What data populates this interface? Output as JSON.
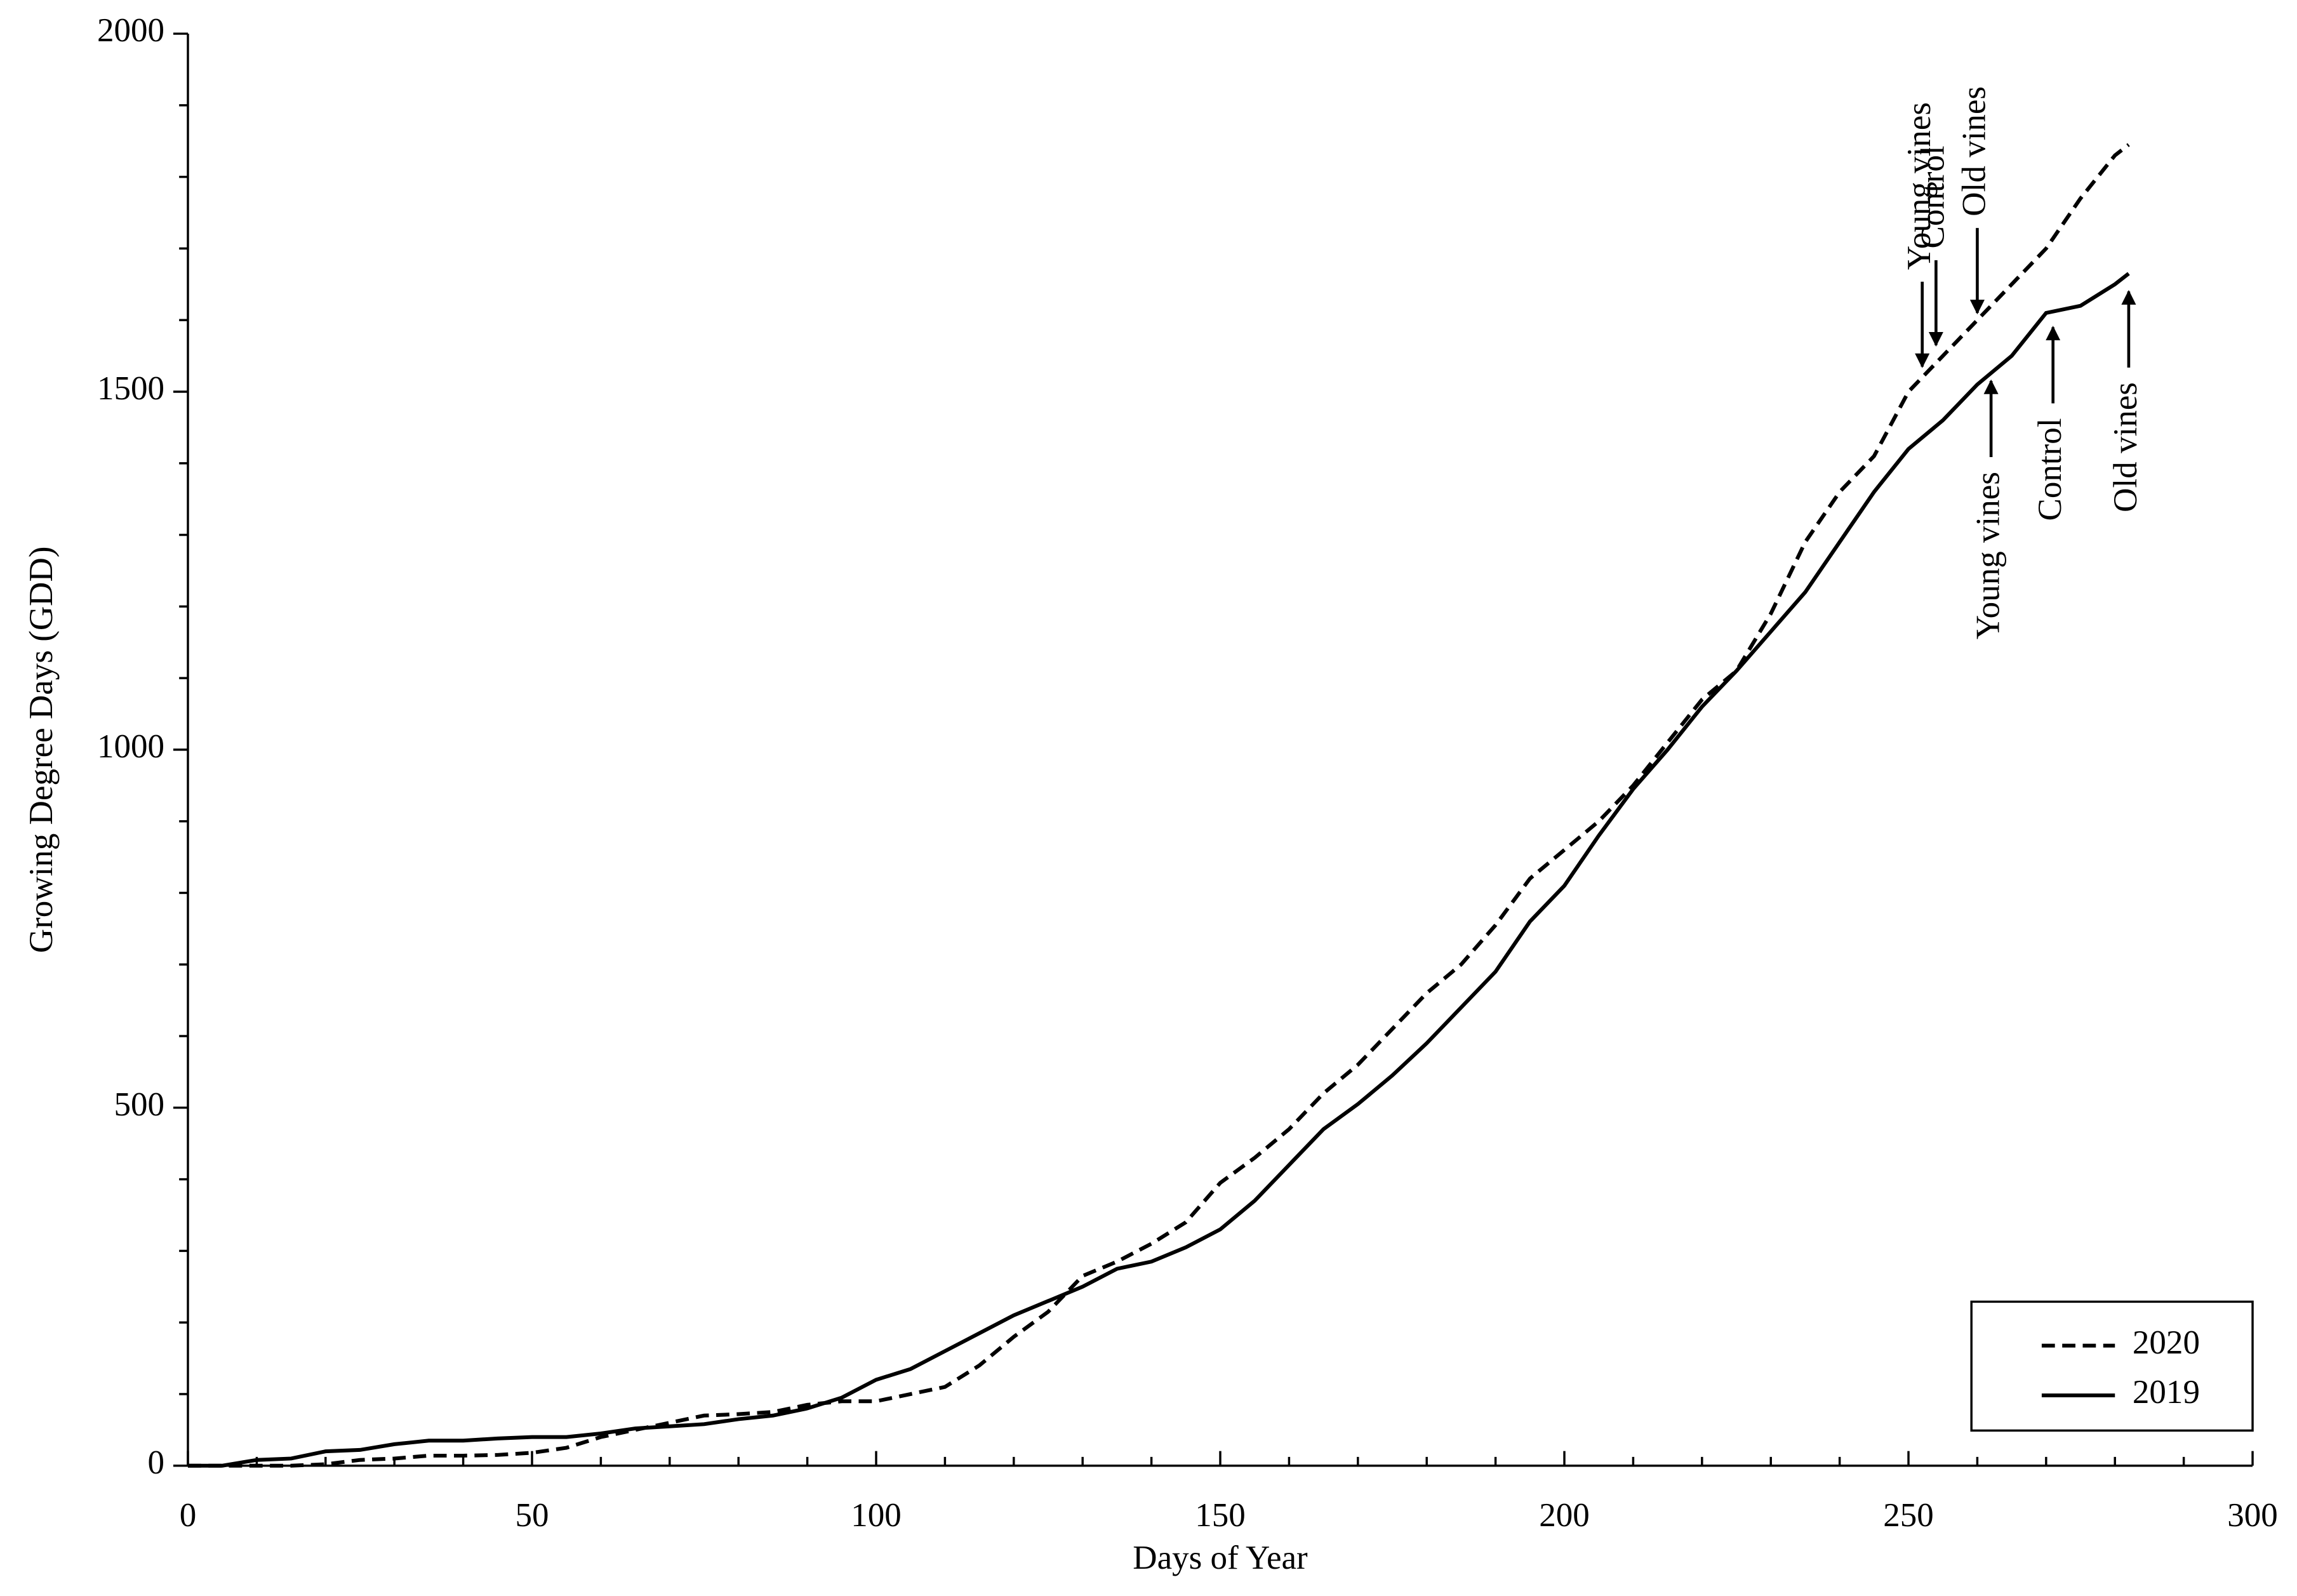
{
  "chart_data": {
    "type": "line",
    "xlabel": "Days of Year",
    "ylabel": "Growing Degree Days (GDD)",
    "x": [
      0,
      5,
      10,
      15,
      20,
      25,
      30,
      35,
      40,
      45,
      50,
      55,
      60,
      65,
      70,
      75,
      80,
      85,
      90,
      95,
      100,
      105,
      110,
      115,
      120,
      125,
      130,
      135,
      140,
      145,
      150,
      155,
      160,
      165,
      170,
      175,
      180,
      185,
      190,
      195,
      200,
      205,
      210,
      215,
      220,
      225,
      230,
      235,
      240,
      245,
      250,
      255,
      260,
      265,
      270,
      275,
      280,
      282
    ],
    "series": [
      {
        "name": "2020",
        "color": "#000000",
        "dash": true,
        "values": [
          0,
          0,
          0,
          0,
          2,
          8,
          10,
          14,
          14,
          15,
          18,
          25,
          40,
          50,
          60,
          70,
          72,
          75,
          85,
          90,
          90,
          100,
          110,
          140,
          180,
          215,
          265,
          285,
          310,
          340,
          395,
          430,
          470,
          520,
          560,
          610,
          660,
          700,
          755,
          820,
          860,
          900,
          950,
          1010,
          1070,
          1110,
          1190,
          1290,
          1360,
          1410,
          1500,
          1550,
          1600,
          1650,
          1700,
          1770,
          1830,
          1845
        ],
        "annotations": [
          {
            "text": "Young vines",
            "x": 252,
            "y": 1535
          },
          {
            "text": "Control",
            "x": 254,
            "y": 1565
          },
          {
            "text": "Old vines",
            "x": 260,
            "y": 1610
          }
        ]
      },
      {
        "name": "2019",
        "color": "#000000",
        "dash": false,
        "values": [
          0,
          0,
          8,
          10,
          20,
          22,
          30,
          35,
          35,
          38,
          40,
          40,
          45,
          52,
          55,
          58,
          65,
          70,
          80,
          95,
          120,
          135,
          160,
          185,
          210,
          230,
          250,
          275,
          285,
          305,
          330,
          370,
          420,
          470,
          505,
          545,
          590,
          640,
          690,
          760,
          810,
          880,
          945,
          1000,
          1060,
          1110,
          1165,
          1220,
          1290,
          1360,
          1420,
          1460,
          1510,
          1550,
          1610,
          1620,
          1650,
          1665
        ],
        "annotations": [
          {
            "text": "Young vines",
            "x": 262,
            "y": 1515
          },
          {
            "text": "Control",
            "x": 271,
            "y": 1590
          },
          {
            "text": "Old vines",
            "x": 282,
            "y": 1640
          }
        ]
      }
    ],
    "xlim": [
      0,
      300
    ],
    "xticks": [
      0,
      50,
      100,
      150,
      200,
      250,
      300
    ],
    "ylim": [
      0,
      2000
    ],
    "yticks": [
      0,
      500,
      1000,
      1500,
      2000
    ],
    "grid": false,
    "legend": "lower right"
  }
}
